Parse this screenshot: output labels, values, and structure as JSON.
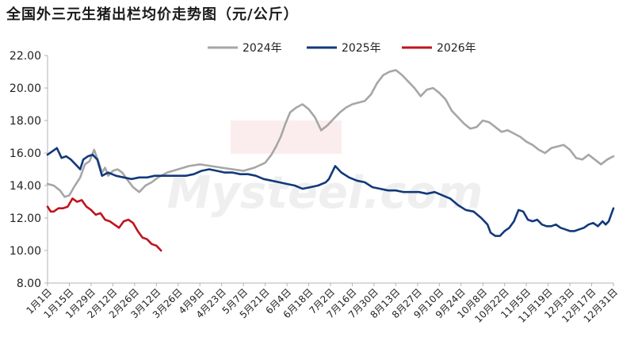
{
  "chart_data": {
    "type": "line",
    "title": "全国外三元生猪出栏均价走势图（元/公斤）",
    "ylim": [
      8,
      22
    ],
    "y_ticks": [
      "8.00",
      "10.00",
      "12.00",
      "14.00",
      "16.00",
      "18.00",
      "20.00",
      "22.00"
    ],
    "x_tick_labels": [
      "1月1日",
      "1月15日",
      "1月29日",
      "2月12日",
      "2月26日",
      "3月12日",
      "3月26日",
      "4月9日",
      "4月23日",
      "5月7日",
      "5月21日",
      "6月4日",
      "6月18日",
      "7月2日",
      "7月16日",
      "7月30日",
      "8月13日",
      "8月27日",
      "9月10日",
      "9月24日",
      "10月8日",
      "10月22日",
      "11月5日",
      "11月19日",
      "12月3日",
      "12月17日",
      "12月31日"
    ],
    "x_tick_days": [
      1,
      15,
      29,
      43,
      57,
      71,
      85,
      99,
      113,
      127,
      141,
      155,
      169,
      183,
      197,
      211,
      225,
      239,
      253,
      267,
      281,
      295,
      309,
      323,
      337,
      351,
      365
    ],
    "legend_position": "top",
    "watermark_text": "Mysteel.com",
    "series": [
      {
        "name": "2024年",
        "color": "#a6a6a6",
        "x": [
          1,
          5,
          9,
          12,
          15,
          18,
          22,
          25,
          28,
          31,
          34,
          36,
          38,
          40,
          43,
          46,
          49,
          52,
          56,
          60,
          64,
          68,
          72,
          78,
          85,
          92,
          99,
          106,
          113,
          120,
          127,
          134,
          141,
          145,
          148,
          151,
          154,
          157,
          161,
          165,
          169,
          173,
          177,
          181,
          185,
          189,
          193,
          197,
          201,
          205,
          209,
          213,
          217,
          221,
          225,
          229,
          233,
          237,
          241,
          245,
          249,
          253,
          257,
          261,
          265,
          269,
          273,
          277,
          281,
          285,
          289,
          293,
          297,
          301,
          305,
          309,
          313,
          317,
          321,
          325,
          329,
          333,
          337,
          341,
          345,
          349,
          353,
          357,
          361,
          365
        ],
        "values": [
          14.1,
          14.0,
          13.7,
          13.3,
          13.4,
          13.9,
          14.5,
          15.3,
          15.5,
          16.2,
          15.4,
          14.8,
          15.1,
          14.6,
          14.9,
          15.0,
          14.8,
          14.4,
          13.9,
          13.6,
          14.0,
          14.2,
          14.5,
          14.8,
          15.0,
          15.2,
          15.3,
          15.2,
          15.1,
          15.0,
          14.9,
          15.1,
          15.4,
          15.9,
          16.4,
          17.0,
          17.8,
          18.5,
          18.8,
          19.0,
          18.7,
          18.2,
          17.4,
          17.7,
          18.1,
          18.5,
          18.8,
          19.0,
          19.1,
          19.2,
          19.6,
          20.3,
          20.8,
          21.0,
          21.1,
          20.8,
          20.4,
          20.0,
          19.5,
          19.9,
          20.0,
          19.7,
          19.3,
          18.6,
          18.2,
          17.8,
          17.5,
          17.6,
          18.0,
          17.9,
          17.6,
          17.3,
          17.4,
          17.2,
          17.0,
          16.7,
          16.5,
          16.2,
          16.0,
          16.3,
          16.4,
          16.5,
          16.2,
          15.7,
          15.6,
          15.9,
          15.6,
          15.3,
          15.6,
          15.8
        ]
      },
      {
        "name": "2025年",
        "color": "#12397a",
        "x": [
          1,
          4,
          7,
          10,
          13,
          16,
          19,
          22,
          24,
          27,
          30,
          33,
          36,
          40,
          45,
          50,
          55,
          60,
          65,
          70,
          75,
          80,
          85,
          90,
          95,
          100,
          105,
          110,
          115,
          120,
          125,
          130,
          135,
          140,
          145,
          150,
          155,
          160,
          165,
          170,
          175,
          180,
          182,
          184,
          186,
          190,
          195,
          200,
          205,
          210,
          215,
          220,
          225,
          230,
          235,
          240,
          245,
          250,
          255,
          260,
          265,
          270,
          275,
          280,
          284,
          286,
          289,
          292,
          295,
          298,
          301,
          304,
          307,
          310,
          313,
          316,
          319,
          322,
          325,
          328,
          331,
          334,
          337,
          340,
          343,
          346,
          349,
          352,
          355,
          358,
          360,
          362,
          365
        ],
        "values": [
          15.9,
          16.1,
          16.3,
          15.7,
          15.8,
          15.6,
          15.3,
          15.0,
          15.6,
          15.8,
          15.9,
          15.6,
          14.6,
          14.8,
          14.6,
          14.5,
          14.4,
          14.5,
          14.5,
          14.6,
          14.6,
          14.6,
          14.6,
          14.6,
          14.7,
          14.9,
          15.0,
          14.9,
          14.8,
          14.8,
          14.7,
          14.7,
          14.6,
          14.4,
          14.3,
          14.2,
          14.1,
          14.0,
          13.8,
          13.9,
          14.0,
          14.2,
          14.4,
          14.8,
          15.2,
          14.8,
          14.5,
          14.3,
          14.2,
          13.9,
          13.8,
          13.7,
          13.7,
          13.6,
          13.6,
          13.6,
          13.5,
          13.6,
          13.4,
          13.2,
          12.8,
          12.5,
          12.4,
          12.0,
          11.6,
          11.1,
          10.9,
          10.9,
          11.2,
          11.4,
          11.8,
          12.5,
          12.4,
          11.9,
          11.8,
          11.9,
          11.6,
          11.5,
          11.5,
          11.6,
          11.4,
          11.3,
          11.2,
          11.2,
          11.3,
          11.4,
          11.6,
          11.7,
          11.5,
          11.8,
          11.6,
          11.8,
          12.6
        ]
      },
      {
        "name": "2026年",
        "color": "#c0141e",
        "x": [
          1,
          3,
          5,
          8,
          11,
          14,
          17,
          20,
          23,
          26,
          29,
          32,
          35,
          38,
          41,
          44,
          47,
          50,
          53,
          56,
          59,
          62,
          65,
          68,
          71,
          74
        ],
        "values": [
          12.7,
          12.4,
          12.4,
          12.6,
          12.6,
          12.7,
          13.2,
          13.0,
          13.1,
          12.7,
          12.5,
          12.2,
          12.3,
          11.9,
          11.8,
          11.6,
          11.4,
          11.8,
          11.9,
          11.7,
          11.2,
          10.8,
          10.7,
          10.4,
          10.3,
          10.0
        ]
      }
    ]
  }
}
